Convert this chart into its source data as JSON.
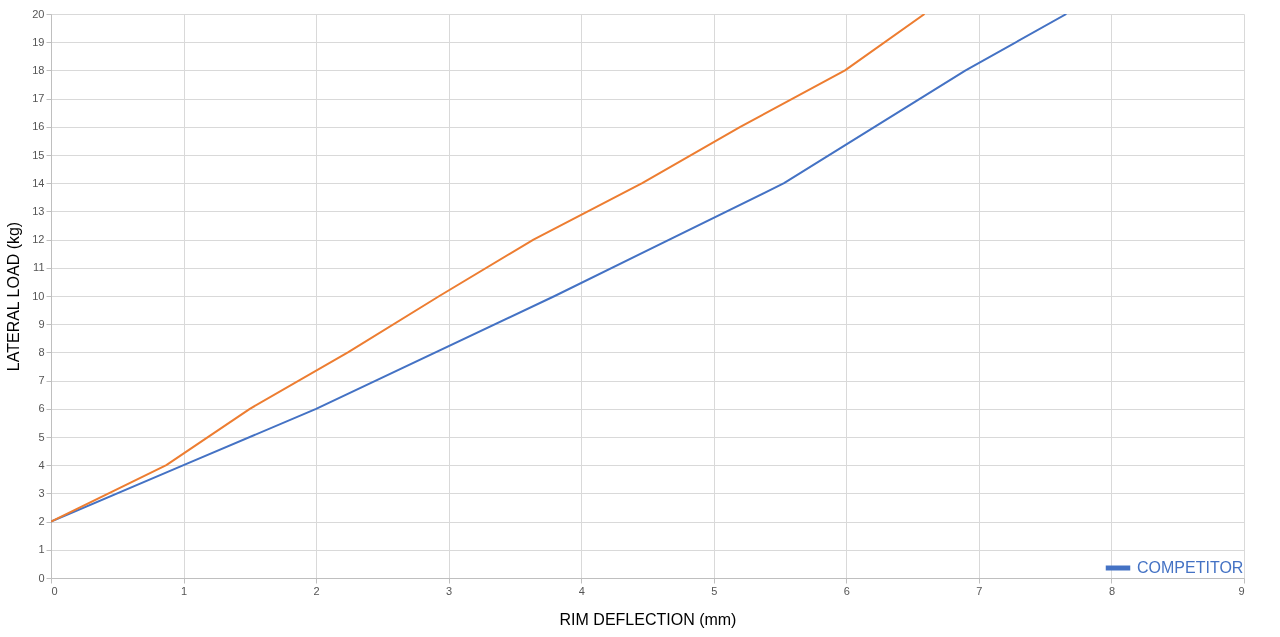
{
  "chart_data": {
    "type": "line",
    "xlabel": "RIM DEFLECTION (mm)",
    "ylabel": "LATERAL LOAD (kg)",
    "xlim": [
      0,
      9
    ],
    "xticks": [
      0,
      1,
      2,
      3,
      4,
      5,
      6,
      7,
      8,
      9
    ],
    "ylim": [
      0,
      20
    ],
    "yticks": [
      0,
      1,
      2,
      3,
      4,
      5,
      6,
      7,
      8,
      9,
      10,
      11,
      12,
      13,
      14,
      15,
      16,
      17,
      18,
      19,
      20
    ],
    "grid": true,
    "legend": "bottom right",
    "marker": "none",
    "line_style": "solid",
    "series": [
      {
        "name": "COMPETITOR",
        "color": "#4472c4",
        "x": [
          0,
          1,
          2,
          3.8,
          5.53,
          6.9,
          7.66
        ],
        "values": [
          2,
          4,
          6,
          10,
          14,
          18,
          20
        ]
      },
      {
        "color": "#ed7d31",
        "x": [
          0,
          0.87,
          1.5,
          2.24,
          2.93,
          3.64,
          4.46,
          5.2,
          5.99,
          6.59
        ],
        "values": [
          2,
          4,
          6,
          8,
          10,
          12,
          14,
          16,
          18,
          20
        ]
      }
    ]
  }
}
